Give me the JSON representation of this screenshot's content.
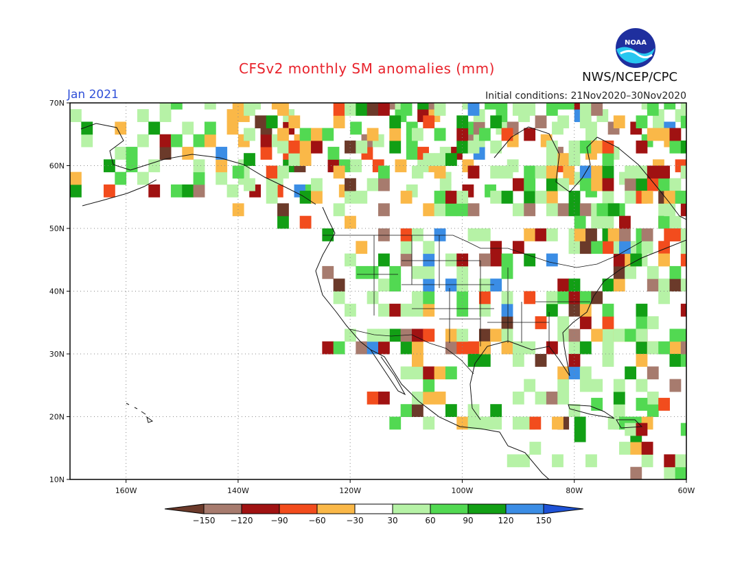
{
  "map": {
    "title": "CFSv2 monthly SM anomalies (mm)",
    "month_label": "Jan 2021",
    "initial_conditions": "Initial conditions: 21Nov2020–30Nov2020",
    "agency": "NWS/NCEP/CPC",
    "logo_text": "NOAA",
    "logo_icon": "noaa-seagull-icon",
    "extent": {
      "lon_min": -170,
      "lon_max": -60,
      "lat_min": 10,
      "lat_max": 70
    },
    "lat_labels": [
      "70N",
      "60N",
      "50N",
      "40N",
      "30N",
      "20N",
      "10N"
    ],
    "lat_values": [
      70,
      60,
      50,
      40,
      30,
      20,
      10
    ],
    "lon_labels": [
      "160W",
      "140W",
      "120W",
      "100W",
      "80W",
      "60W"
    ],
    "lon_values": [
      -160,
      -140,
      -120,
      -100,
      -80,
      -60
    ]
  },
  "colorbar": {
    "unit": "mm",
    "tick_labels": [
      "−150",
      "−120",
      "−90",
      "−60",
      "−30",
      "30",
      "60",
      "90",
      "120",
      "150"
    ],
    "colors": [
      "#6b3a2a",
      "#a77b6e",
      "#a01212",
      "#f24c1d",
      "#fab848",
      "#ffffff",
      "#b6f2a6",
      "#52d952",
      "#129f15",
      "#3b8de5",
      "#1e52d6"
    ]
  }
}
